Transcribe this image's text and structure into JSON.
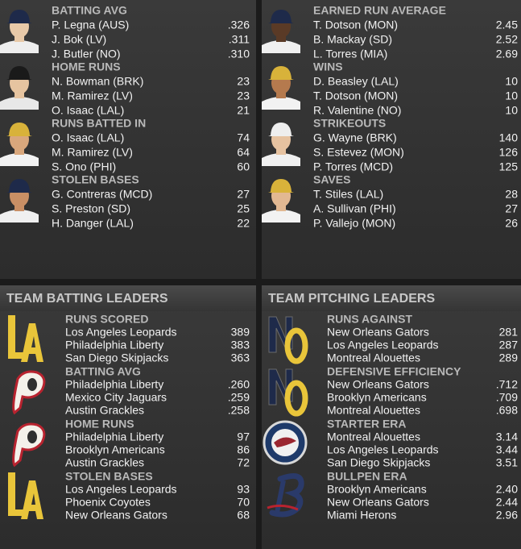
{
  "player_batting": [
    {
      "title": "BATTING AVG",
      "leaders": [
        {
          "name": "P. Legna (AUS)",
          "value": ".326"
        },
        {
          "name": "J. Bok (LV)",
          "value": ".311"
        },
        {
          "name": "J. Butler (NO)",
          "value": ".310"
        }
      ]
    },
    {
      "title": "HOME RUNS",
      "leaders": [
        {
          "name": "N. Bowman (BRK)",
          "value": "23"
        },
        {
          "name": "M. Ramirez (LV)",
          "value": "23"
        },
        {
          "name": "O. Isaac (LAL)",
          "value": "21"
        }
      ]
    },
    {
      "title": "RUNS BATTED IN",
      "leaders": [
        {
          "name": "O. Isaac (LAL)",
          "value": "74"
        },
        {
          "name": "M. Ramirez (LV)",
          "value": "64"
        },
        {
          "name": "S. Ono (PHI)",
          "value": "60"
        }
      ]
    },
    {
      "title": "STOLEN BASES",
      "leaders": [
        {
          "name": "G. Contreras (MCD)",
          "value": "27"
        },
        {
          "name": "S. Preston (SD)",
          "value": "25"
        },
        {
          "name": "H. Danger (LAL)",
          "value": "22"
        }
      ]
    }
  ],
  "player_pitching": [
    {
      "title": "EARNED RUN AVERAGE",
      "leaders": [
        {
          "name": "T. Dotson (MON)",
          "value": "2.45"
        },
        {
          "name": "B. Mackay (SD)",
          "value": "2.52"
        },
        {
          "name": "L. Torres (MIA)",
          "value": "2.69"
        }
      ]
    },
    {
      "title": "WINS",
      "leaders": [
        {
          "name": "D. Beasley (LAL)",
          "value": "10"
        },
        {
          "name": "T. Dotson (MON)",
          "value": "10"
        },
        {
          "name": "R. Valentine (NO)",
          "value": "10"
        }
      ]
    },
    {
      "title": "STRIKEOUTS",
      "leaders": [
        {
          "name": "G. Wayne (BRK)",
          "value": "140"
        },
        {
          "name": "S. Estevez (MON)",
          "value": "126"
        },
        {
          "name": "P. Torres (MCD)",
          "value": "125"
        }
      ]
    },
    {
      "title": "SAVES",
      "leaders": [
        {
          "name": "T. Stiles (LAL)",
          "value": "28"
        },
        {
          "name": "A. Sullivan (PHI)",
          "value": "27"
        },
        {
          "name": "P. Vallejo (MON)",
          "value": "26"
        }
      ]
    }
  ],
  "team_batting": {
    "title": "TEAM BATTING LEADERS",
    "categories": [
      {
        "title": "RUNS SCORED",
        "leaders": [
          {
            "name": "Los Angeles Leopards",
            "value": "389"
          },
          {
            "name": "Philadelphia Liberty",
            "value": "383"
          },
          {
            "name": "San Diego Skipjacks",
            "value": "363"
          }
        ]
      },
      {
        "title": "BATTING AVG",
        "leaders": [
          {
            "name": "Philadelphia Liberty",
            "value": ".260"
          },
          {
            "name": "Mexico City Jaguars",
            "value": ".259"
          },
          {
            "name": "Austin Grackles",
            "value": ".258"
          }
        ]
      },
      {
        "title": "HOME RUNS",
        "leaders": [
          {
            "name": "Philadelphia Liberty",
            "value": "97"
          },
          {
            "name": "Brooklyn Americans",
            "value": "86"
          },
          {
            "name": "Austin Grackles",
            "value": "72"
          }
        ]
      },
      {
        "title": "STOLEN BASES",
        "leaders": [
          {
            "name": "Los Angeles Leopards",
            "value": "93"
          },
          {
            "name": "Phoenix Coyotes",
            "value": "70"
          },
          {
            "name": "New Orleans Gators",
            "value": "68"
          }
        ]
      }
    ]
  },
  "team_pitching": {
    "title": "TEAM PITCHING LEADERS",
    "categories": [
      {
        "title": "RUNS AGAINST",
        "leaders": [
          {
            "name": "New Orleans Gators",
            "value": "281"
          },
          {
            "name": "Los Angeles Leopards",
            "value": "287"
          },
          {
            "name": "Montreal Alouettes",
            "value": "289"
          }
        ]
      },
      {
        "title": "DEFENSIVE EFFICIENCY",
        "leaders": [
          {
            "name": "New Orleans Gators",
            "value": ".712"
          },
          {
            "name": "Brooklyn Americans",
            "value": ".709"
          },
          {
            "name": "Montreal Alouettes",
            "value": ".698"
          }
        ]
      },
      {
        "title": "STARTER ERA",
        "leaders": [
          {
            "name": "Montreal Alouettes",
            "value": "3.14"
          },
          {
            "name": "Los Angeles Leopards",
            "value": "3.44"
          },
          {
            "name": "San Diego Skipjacks",
            "value": "3.51"
          }
        ]
      },
      {
        "title": "BULLPEN ERA",
        "leaders": [
          {
            "name": "Brooklyn Americans",
            "value": "2.40"
          },
          {
            "name": "New Orleans Gators",
            "value": "2.44"
          },
          {
            "name": "Miami Herons",
            "value": "2.96"
          }
        ]
      }
    ]
  }
}
